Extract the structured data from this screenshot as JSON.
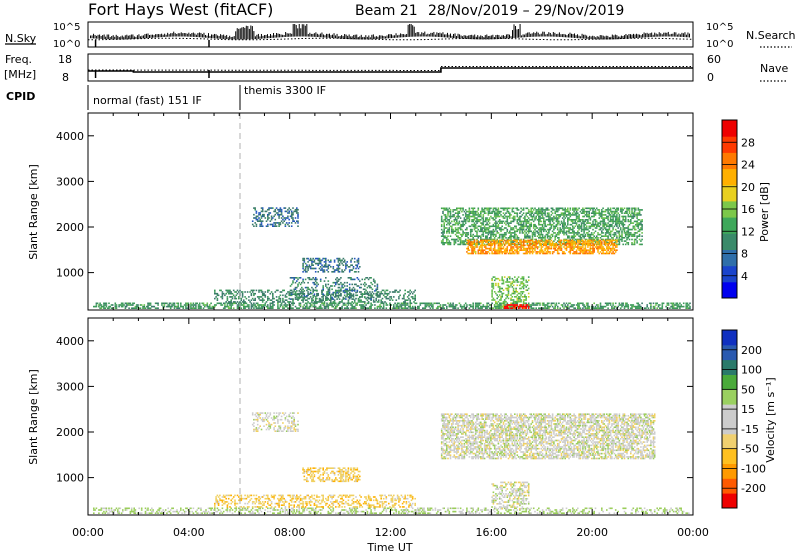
{
  "header": {
    "title": "Fort Hays West (fitACF)",
    "beam": "Beam 21",
    "dates": "28/Nov/2019 – 29/Nov/2019"
  },
  "strip": {
    "nsky_label": "N.Sky",
    "nsky_hi": "10^5",
    "nsky_lo": "10^0",
    "nsearch_label": "N.Search",
    "nsearch_hi": "10^5",
    "nsearch_lo": "10^0",
    "freq_label_1": "Freq.",
    "freq_label_2": "[MHz]",
    "freq_hi": "18",
    "freq_lo": "8",
    "nave_label": "Nave",
    "nave_hi": "60",
    "nave_lo": "0",
    "cpid_label": "CPID",
    "cpid_mode_1": "normal (fast) 151 IF",
    "cpid_mode_2": "themis 3300 IF"
  },
  "axes": {
    "x_label": "Time UT",
    "x_ticks": [
      "00:00",
      "04:00",
      "08:00",
      "12:00",
      "16:00",
      "20:00",
      "00:00"
    ],
    "y_label": "Slant Range [km]",
    "y_ticks": [
      "1000",
      "2000",
      "3000",
      "4000"
    ]
  },
  "colorbars": {
    "power_label": "Power [dB]",
    "power_ticks": [
      "4",
      "8",
      "12",
      "16",
      "20",
      "24",
      "28"
    ],
    "velocity_label": "Velocity [m s⁻¹]",
    "velocity_ticks": [
      "-200",
      "-100",
      "-50",
      "-15",
      "15",
      "50",
      "100",
      "200"
    ]
  },
  "chart_data": [
    {
      "type": "heatmap",
      "quantity": "Power",
      "xlabel": "Time UT",
      "ylabel": "Slant Range [km]",
      "xlim_hours": [
        0,
        24
      ],
      "ylim_km": [
        180,
        4500
      ],
      "zlim_db": [
        0,
        32
      ],
      "colorscale": [
        "#0000dd",
        "#2255bb",
        "#3a7a6a",
        "#3c9a5a",
        "#66c04a",
        "#c8d020",
        "#ffb000",
        "#ff7000",
        "#ff0000"
      ],
      "annotations": [
        {
          "type": "dashed-vertical",
          "x_hours": 6.0
        }
      ],
      "regions": [
        {
          "t0": 0.2,
          "t1": 23.9,
          "r0": 200,
          "r1": 340,
          "z": 12,
          "density": 0.55
        },
        {
          "t0": 5.0,
          "t1": 13.0,
          "r0": 340,
          "r1": 620,
          "z": 10,
          "density": 0.35
        },
        {
          "t0": 6.5,
          "t1": 8.3,
          "r0": 2000,
          "r1": 2400,
          "z": 8,
          "density": 0.4
        },
        {
          "t0": 8.5,
          "t1": 10.8,
          "r0": 1000,
          "r1": 1300,
          "z": 8,
          "density": 0.4
        },
        {
          "t0": 8.0,
          "t1": 11.5,
          "r0": 400,
          "r1": 900,
          "z": 9,
          "density": 0.25
        },
        {
          "t0": 14.0,
          "t1": 22.0,
          "r0": 1600,
          "r1": 2400,
          "z": 13,
          "density": 0.55
        },
        {
          "t0": 15.0,
          "t1": 21.0,
          "r0": 1400,
          "r1": 1700,
          "z": 24,
          "density": 0.65
        },
        {
          "t0": 16.0,
          "t1": 17.5,
          "r0": 200,
          "r1": 900,
          "z": 16,
          "density": 0.4
        },
        {
          "t0": 16.5,
          "t1": 17.5,
          "r0": 200,
          "r1": 300,
          "z": 30,
          "density": 0.7
        }
      ]
    },
    {
      "type": "heatmap",
      "quantity": "Velocity",
      "xlabel": "Time UT",
      "ylabel": "Slant Range [km]",
      "xlim_hours": [
        0,
        24
      ],
      "ylim_km": [
        180,
        4500
      ],
      "zlim_ms": [
        -200,
        200
      ],
      "colorscale": [
        "#ee0000",
        "#ff7000",
        "#ffb000",
        "#f0d060",
        "#cccccc",
        "#9acd5a",
        "#3a9a3a",
        "#3070b0",
        "#1030c0"
      ],
      "annotations": [
        {
          "type": "dashed-vertical",
          "x_hours": 6.0
        }
      ],
      "regions": [
        {
          "t0": 0.2,
          "t1": 23.9,
          "r0": 200,
          "r1": 340,
          "z": 30,
          "density": 0.35
        },
        {
          "t0": 5.0,
          "t1": 13.0,
          "r0": 340,
          "r1": 620,
          "z": -50,
          "density": 0.4
        },
        {
          "t0": 8.5,
          "t1": 10.8,
          "r0": 900,
          "r1": 1200,
          "z": -50,
          "density": 0.45
        },
        {
          "t0": 6.5,
          "t1": 8.3,
          "r0": 2000,
          "r1": 2400,
          "z": 0,
          "density": 0.35
        },
        {
          "t0": 14.0,
          "t1": 22.5,
          "r0": 1400,
          "r1": 2400,
          "z": 0,
          "density": 0.6
        },
        {
          "t0": 16.0,
          "t1": 17.5,
          "r0": 300,
          "r1": 900,
          "z": 0,
          "density": 0.45
        }
      ]
    }
  ]
}
